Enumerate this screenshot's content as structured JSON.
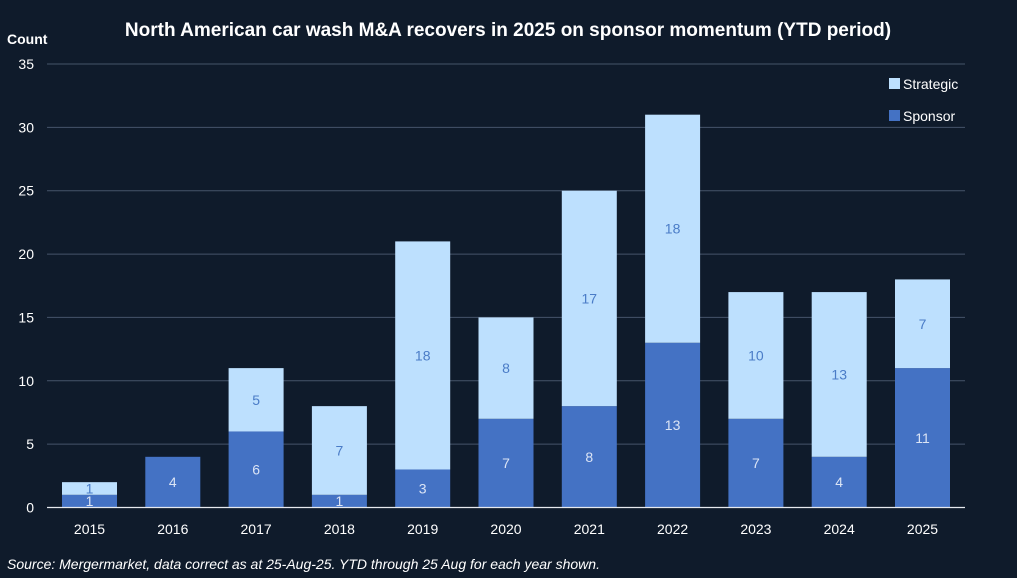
{
  "colors": {
    "background": "#0f1b2b",
    "sponsor": "#4472c4",
    "strategic": "#bde0fe",
    "label_on_sponsor": "#dbe4f5",
    "label_on_strategic": "#4a7cc7"
  },
  "chart_data": {
    "type": "bar",
    "stacked": true,
    "title": "North American car wash M&A recovers in 2025 on sponsor momentum (YTD period)",
    "ylabel": "Count",
    "xlabel": "",
    "ylim": [
      0,
      35
    ],
    "yticks": [
      0,
      5,
      10,
      15,
      20,
      25,
      30,
      35
    ],
    "grid": true,
    "legend_position": "top-right",
    "categories": [
      "2015",
      "2016",
      "2017",
      "2018",
      "2019",
      "2020",
      "2021",
      "2022",
      "2023",
      "2024",
      "2025"
    ],
    "series": [
      {
        "name": "Sponsor",
        "values": [
          1,
          4,
          6,
          1,
          3,
          7,
          8,
          13,
          7,
          4,
          11
        ]
      },
      {
        "name": "Strategic",
        "values": [
          1,
          0,
          5,
          7,
          18,
          8,
          17,
          18,
          10,
          13,
          7
        ]
      }
    ],
    "legend": [
      "Strategic",
      "Sponsor"
    ],
    "source": "Source: Mergermarket, data correct as at 25-Aug-25. YTD through 25 Aug for each year shown."
  }
}
